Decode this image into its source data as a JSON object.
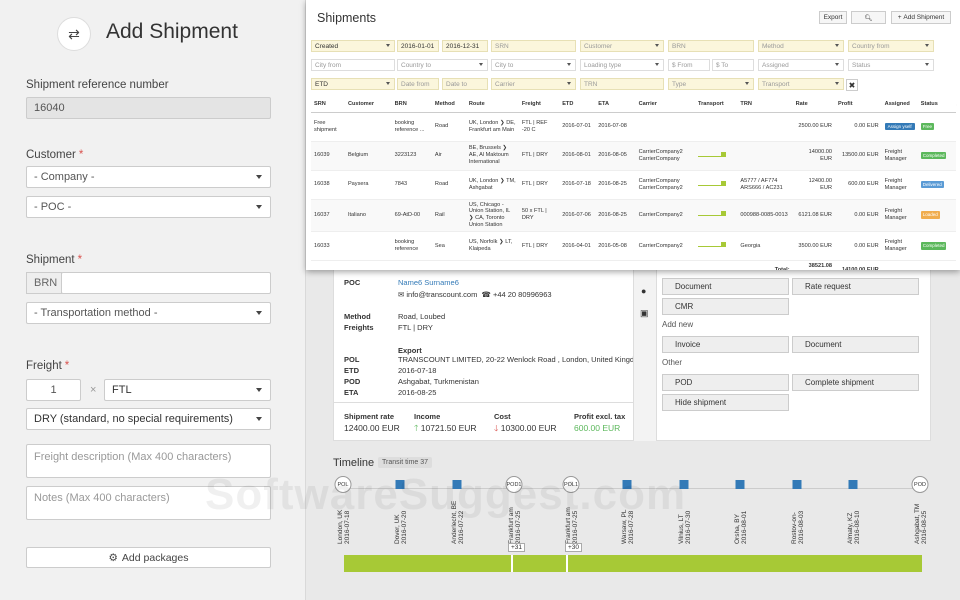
{
  "form": {
    "title": "Add Shipment",
    "ref_label": "Shipment reference number",
    "ref_value": "16040",
    "customer_label": "Customer",
    "company_placeholder": "- Company -",
    "poc_placeholder": "- POC -",
    "shipment_label": "Shipment",
    "brn_label": "BRN",
    "transport_placeholder": "- Transportation method -",
    "freight_label": "Freight",
    "freight_qty": "1",
    "freight_mult": "×",
    "freight_type": "FTL",
    "freight_cond": "DRY (standard, no special requirements)",
    "desc_placeholder": "Freight description (Max 400 characters)",
    "notes_placeholder": "Notes (Max 400 characters)",
    "add_packages": "Add packages"
  },
  "overlay": {
    "title": "Shipments",
    "export": "Export",
    "add_button": "Add Shipment",
    "filters": [
      {
        "t": "Created",
        "dd": true,
        "d": true
      },
      {
        "t": "2016-01-01",
        "d": true
      },
      {
        "t": "2016-12-31",
        "d": true
      },
      {
        "t": "SRN"
      },
      {
        "t": "Customer",
        "dd": true
      },
      {
        "t": "BRN"
      },
      {
        "t": "Method",
        "dd": true
      },
      {
        "t": "Country from",
        "dd": true
      },
      {
        "t": "City from",
        "w": true
      },
      {
        "t": "Country to",
        "dd": true,
        "w": true
      },
      {
        "t": "City to",
        "dd": true,
        "w": true
      },
      {
        "t": "Loading type",
        "dd": true,
        "w": true
      },
      {
        "t": "$ From",
        "w": true
      },
      {
        "t": "$ To",
        "w": true
      },
      {
        "t": "Assigned",
        "dd": true,
        "w": true
      },
      {
        "t": "Status",
        "dd": true,
        "w": true
      },
      {
        "t": "ETD",
        "dd": true,
        "d": true
      },
      {
        "t": "Date from"
      },
      {
        "t": "Date to"
      },
      {
        "t": "Carrier",
        "dd": true
      },
      {
        "t": "TRN"
      },
      {
        "t": "Type",
        "dd": true
      },
      {
        "t": "Transport",
        "dd": true
      }
    ],
    "clear": "✖",
    "columns": [
      "SRN",
      "Customer",
      "BRN",
      "Method",
      "Route",
      "Freight",
      "ETD",
      "ETA",
      "Carrier",
      "Transport",
      "TRN",
      "Rate",
      "Profit",
      "Assigned",
      "Status"
    ],
    "rows": [
      {
        "srn": "Free shipment",
        "customer": "",
        "brn": "booking reference ...",
        "method": "Road",
        "route": "UK, London ❯ DE, Frankfurt am Main",
        "freight": "FTL | REF -20 C",
        "etd": "2016-07-01",
        "eta": "2016-07-08",
        "carrier": "",
        "transport": false,
        "trn": "",
        "rate": "2500.00 EUR",
        "profit": "0.00 EUR",
        "assigned": "Assign yself",
        "assigned_btn": true,
        "status": "Free",
        "status_color": "#5cb85c"
      },
      {
        "srn": "16039",
        "customer": "Belgium",
        "brn": "3223123",
        "method": "Air",
        "route": "BE, Brussels ❯ AE, Al Maktoum International",
        "freight": "FTL | DRY",
        "etd": "2016-08-01",
        "eta": "2016-08-05",
        "carrier": "CarrierCompany2 CarrierCompany",
        "transport": true,
        "trn": "",
        "rate": "14000.00 EUR",
        "profit": "13500.00 EUR",
        "assigned": "Freight Manager",
        "status": "Completed",
        "status_color": "#5cb85c"
      },
      {
        "srn": "16038",
        "customer": "Paysera",
        "brn": "7843",
        "method": "Road",
        "route": "UK, London ❯ TM, Ashgabat",
        "freight": "FTL | DRY",
        "etd": "2016-07-18",
        "eta": "2016-08-25",
        "carrier": "CarrierCompany CarrierCompany2",
        "transport": true,
        "trn": "A5777 / AF774 ARS666 / AC231",
        "rate": "12400.00 EUR",
        "profit": "600.00 EUR",
        "assigned": "Freight Manager",
        "status": "Delivered",
        "status_color": "#5b9bd5"
      },
      {
        "srn": "16037",
        "customer": "Italiano",
        "brn": "69-AtD-00",
        "method": "Rail",
        "route": "US, Chicago - Union Station, IL ❯ CA, Toronto Union Station",
        "freight": "50 x FTL | DRY",
        "etd": "2016-07-06",
        "eta": "2016-08-25",
        "carrier": "CarrierCompany2",
        "transport": true,
        "trn": "000988-0085-0013",
        "rate": "6121.08 EUR",
        "profit": "0.00 EUR",
        "assigned": "Freight Manager",
        "status": "Loaded",
        "status_color": "#f0ad4e"
      },
      {
        "srn": "16033",
        "customer": "",
        "brn": "booking reference",
        "method": "Sea",
        "route": "US, Norfolk ❯ LT, Klaipeda",
        "freight": "FTL | DRY",
        "etd": "2016-04-01",
        "eta": "2016-05-08",
        "carrier": "CarrierCompany2",
        "transport": true,
        "trn": "Georgia",
        "rate": "3500.00 EUR",
        "profit": "0.00 EUR",
        "assigned": "Freight Manager",
        "status": "Completed",
        "status_color": "#5cb85c"
      }
    ],
    "total_label": "Total:",
    "total_rate": "38521.08 EUR",
    "total_profit": "14100.00 EUR"
  },
  "detail": {
    "poc_label": "POC",
    "poc_name": "Name6 Surname6",
    "poc_email": "info@transcount.com",
    "poc_phone": "+44 20 80996963",
    "method_label": "Method",
    "method_value": "Road, Loubed",
    "freights_label": "Freights",
    "freights_value": "FTL | DRY",
    "export_label": "Export",
    "pol_label": "POL",
    "pol_value": "TRANSCOUNT LIMITED, 20-22 Wenlock Road , London, United Kingdom",
    "etd_label": "ETD",
    "etd_value": "2016-07-18",
    "pod_label": "POD",
    "pod_value": "Ashgabat, Turkmenistan",
    "eta_label": "ETA",
    "eta_value": "2016-08-25",
    "rate_label": "Shipment rate",
    "rate_value": "12400.00 EUR",
    "income_label": "Income",
    "income_value": "10721.50 EUR",
    "cost_label": "Cost",
    "cost_value": "10300.00 EUR",
    "profit_label": "Profit excl. tax",
    "profit_value": "600.00 EUR",
    "actions": {
      "document": "Document",
      "rate_request": "Rate request",
      "cmr": "CMR",
      "add_new": "Add new",
      "invoice": "Invoice",
      "document2": "Document",
      "other": "Other",
      "pod": "POD",
      "complete": "Complete shipment",
      "hide": "Hide shipment"
    }
  },
  "timeline": {
    "title": "Timeline",
    "transit": "Transit time 37",
    "nodes": [
      {
        "kind": "circle",
        "tag": "POL",
        "label": "London, UK",
        "date": "2016-07-18"
      },
      {
        "kind": "square",
        "label": "Dover, UK",
        "date": "2016-07-20"
      },
      {
        "kind": "square",
        "label": "Anderlecht, BE",
        "date": "2016-07-22"
      },
      {
        "kind": "circle",
        "tag": "POD1",
        "label": "Frankfurt am",
        "date": "2016-07-25"
      },
      {
        "kind": "circle",
        "tag": "POL1",
        "label": "Frankfurt am",
        "date": "2016-07-25"
      },
      {
        "kind": "square",
        "label": "Warsaw, PL",
        "date": "2016-07-28"
      },
      {
        "kind": "square",
        "label": "Vilnius, LT",
        "date": "2016-07-30"
      },
      {
        "kind": "square",
        "label": "Orsha, BY",
        "date": "2016-08-01"
      },
      {
        "kind": "square",
        "label": "Rostov-on-",
        "date": "2016-08-03"
      },
      {
        "kind": "square",
        "label": "Almaty, KZ",
        "date": "2016-08-10"
      },
      {
        "kind": "circle",
        "tag": "POD",
        "label": "Ashgabat, TM",
        "date": "2016-08-25"
      }
    ],
    "plus1": "+31",
    "plus2": "+30"
  },
  "watermark": "SoftwareSuggest.com"
}
